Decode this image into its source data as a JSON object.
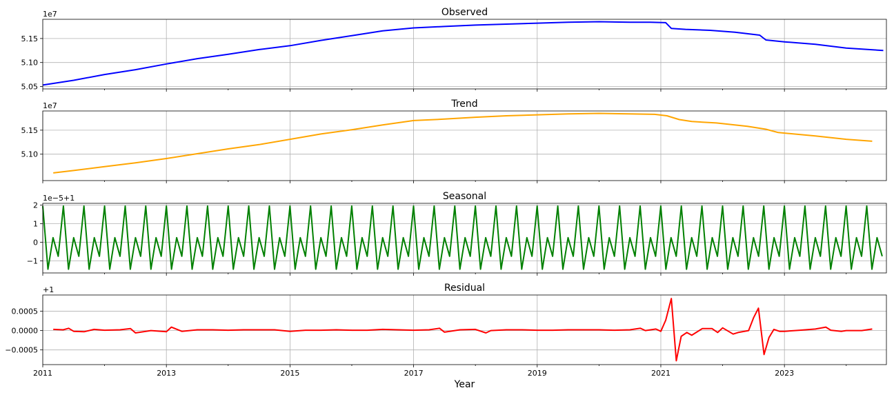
{
  "chart_data": [
    {
      "type": "line",
      "title": "Observed",
      "offset_label": "1e7",
      "color": "#0000ff",
      "ylim": [
        5.045,
        5.19
      ],
      "yticks": [
        5.05,
        5.1,
        5.15
      ],
      "ytick_labels": [
        "5.05",
        "5.10",
        "5.15"
      ],
      "grid": true,
      "x": [
        2011.0,
        2011.5,
        2012.0,
        2012.5,
        2013.0,
        2013.5,
        2014.0,
        2014.5,
        2015.0,
        2015.5,
        2016.0,
        2016.5,
        2017.0,
        2017.5,
        2018.0,
        2018.5,
        2019.0,
        2019.5,
        2020.0,
        2020.5,
        2020.83,
        2021.08,
        2021.17,
        2021.4,
        2021.8,
        2022.2,
        2022.6,
        2022.7,
        2023.0,
        2023.5,
        2024.0,
        2024.6
      ],
      "values": [
        5.053,
        5.063,
        5.075,
        5.085,
        5.097,
        5.108,
        5.117,
        5.127,
        5.135,
        5.146,
        5.156,
        5.166,
        5.172,
        5.175,
        5.178,
        5.18,
        5.182,
        5.184,
        5.185,
        5.184,
        5.184,
        5.183,
        5.171,
        5.169,
        5.167,
        5.163,
        5.157,
        5.147,
        5.143,
        5.138,
        5.13,
        5.125
      ]
    },
    {
      "type": "line",
      "title": "Trend",
      "offset_label": "1e7",
      "color": "#ffa500",
      "ylim": [
        5.045,
        5.19
      ],
      "yticks": [
        5.1,
        5.15
      ],
      "ytick_labels": [
        "5.10",
        "5.15"
      ],
      "grid": true,
      "x": [
        2011.17,
        2011.5,
        2012.0,
        2012.5,
        2013.0,
        2013.5,
        2014.0,
        2014.5,
        2015.0,
        2015.5,
        2016.0,
        2016.5,
        2017.0,
        2017.5,
        2018.0,
        2018.5,
        2019.0,
        2019.5,
        2020.0,
        2020.5,
        2020.9,
        2021.1,
        2021.3,
        2021.5,
        2021.9,
        2022.4,
        2022.7,
        2022.9,
        2023.5,
        2024.0,
        2024.42
      ],
      "values": [
        5.061,
        5.066,
        5.074,
        5.082,
        5.091,
        5.101,
        5.111,
        5.12,
        5.131,
        5.142,
        5.151,
        5.161,
        5.17,
        5.173,
        5.177,
        5.18,
        5.182,
        5.184,
        5.185,
        5.184,
        5.183,
        5.18,
        5.172,
        5.168,
        5.165,
        5.158,
        5.152,
        5.145,
        5.138,
        5.131,
        5.127
      ]
    },
    {
      "type": "line",
      "title": "Seasonal",
      "offset_label": "1e−5+1",
      "color": "#008000",
      "ylim": [
        -1.65,
        2.1
      ],
      "yticks": [
        -1,
        0,
        1,
        2
      ],
      "ytick_labels": [
        "−1",
        "0",
        "1",
        "2"
      ],
      "grid": true,
      "period_years": 0.3333,
      "pattern_x": [
        0.0,
        0.0833,
        0.1667,
        0.25
      ],
      "pattern_values": [
        1.95,
        -1.45,
        0.25,
        -0.75
      ],
      "x_range": [
        2011.0,
        2024.6
      ]
    },
    {
      "type": "line",
      "title": "Residual",
      "offset_label": "+1",
      "color": "#ff0000",
      "ylim": [
        -0.00088,
        0.00092
      ],
      "yticks": [
        -0.0005,
        0.0,
        0.0005
      ],
      "ytick_labels": [
        "−0.0005",
        "0.0000",
        "0.0005"
      ],
      "grid": true,
      "x": [
        2011.17,
        2011.33,
        2011.42,
        2011.5,
        2011.67,
        2011.83,
        2012.0,
        2012.25,
        2012.42,
        2012.5,
        2012.75,
        2013.0,
        2013.08,
        2013.25,
        2013.5,
        2013.75,
        2014.0,
        2014.25,
        2014.5,
        2014.75,
        2015.0,
        2015.25,
        2015.5,
        2015.75,
        2016.0,
        2016.25,
        2016.5,
        2016.75,
        2017.0,
        2017.25,
        2017.42,
        2017.5,
        2017.75,
        2018.0,
        2018.17,
        2018.25,
        2018.5,
        2018.75,
        2019.0,
        2019.25,
        2019.5,
        2019.75,
        2020.0,
        2020.25,
        2020.5,
        2020.67,
        2020.75,
        2020.92,
        2021.0,
        2021.08,
        2021.17,
        2021.25,
        2021.33,
        2021.42,
        2021.5,
        2021.67,
        2021.83,
        2021.92,
        2022.0,
        2022.17,
        2022.25,
        2022.42,
        2022.5,
        2022.58,
        2022.67,
        2022.75,
        2022.83,
        2022.92,
        2023.0,
        2023.25,
        2023.5,
        2023.67,
        2023.75,
        2023.92,
        2024.0,
        2024.25,
        2024.42
      ],
      "values": [
        3e-05,
        2e-05,
        6e-05,
        -2e-05,
        -3e-05,
        3e-05,
        1e-05,
        2e-05,
        5e-05,
        -6e-05,
        0.0,
        -3e-05,
        9e-05,
        -2e-05,
        2e-05,
        2e-05,
        1e-05,
        2e-05,
        2e-05,
        2e-05,
        -2e-05,
        1e-05,
        1e-05,
        2e-05,
        1e-05,
        1e-05,
        3e-05,
        2e-05,
        1e-05,
        2e-05,
        6e-05,
        -4e-05,
        2e-05,
        3e-05,
        -6e-05,
        0.0,
        2e-05,
        2e-05,
        1e-05,
        1e-05,
        2e-05,
        2e-05,
        2e-05,
        1e-05,
        2e-05,
        6e-05,
        0.0,
        4e-05,
        -2e-05,
        0.00027,
        0.00083,
        -0.00078,
        -0.00015,
        -5e-05,
        -0.00012,
        5e-05,
        5e-05,
        -5e-05,
        7e-05,
        -9e-05,
        -5e-05,
        0.0,
        0.00033,
        0.00058,
        -0.00062,
        -0.00018,
        3e-05,
        -2e-05,
        -2e-05,
        1e-05,
        4e-05,
        9e-05,
        1e-05,
        -2e-05,
        0.0,
        0.0,
        4e-05
      ]
    }
  ],
  "xaxis": {
    "label": "Year",
    "xlim": [
      2011.0,
      2024.65
    ],
    "ticks": [
      2011,
      2013,
      2015,
      2017,
      2019,
      2021,
      2023
    ],
    "tick_labels": [
      "2011",
      "2013",
      "2015",
      "2017",
      "2019",
      "2021",
      "2023"
    ]
  }
}
